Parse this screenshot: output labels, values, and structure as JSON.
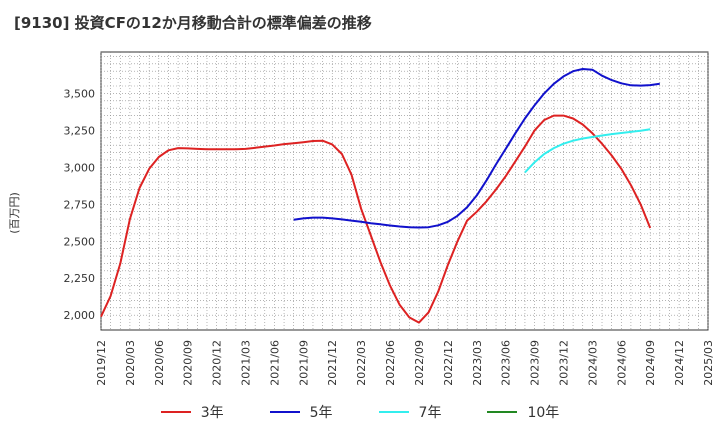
{
  "title": "[9130]  投資CFの12か月移動合計の標準偏差の推移",
  "chart_data": {
    "type": "line",
    "ylabel": "(百万円)",
    "ylim": [
      1900,
      3780
    ],
    "yticks": [
      2000,
      2250,
      2500,
      2750,
      3000,
      3250,
      3500
    ],
    "ytick_labels": [
      "2,000",
      "2,250",
      "2,500",
      "2,750",
      "3,000",
      "3,250",
      "3,500"
    ],
    "xticks": [
      "2019/12",
      "2020/03",
      "2020/06",
      "2020/09",
      "2020/12",
      "2021/03",
      "2021/06",
      "2021/09",
      "2021/12",
      "2022/03",
      "2022/06",
      "2022/09",
      "2022/12",
      "2023/03",
      "2023/06",
      "2023/09",
      "2023/12",
      "2024/03",
      "2024/06",
      "2024/09",
      "2024/12",
      "2025/03"
    ],
    "grid": true,
    "legend_position": "bottom",
    "series": [
      {
        "name": "3年",
        "color": "#dd2222",
        "start": "2019/12",
        "values": [
          1990,
          2130,
          2350,
          2650,
          2860,
          2990,
          3070,
          3115,
          3130,
          3128,
          3125,
          3123,
          3122,
          3122,
          3123,
          3125,
          3132,
          3140,
          3148,
          3157,
          3163,
          3170,
          3178,
          3180,
          3155,
          3090,
          2950,
          2720,
          2540,
          2360,
          2200,
          2070,
          1985,
          1950,
          2020,
          2160,
          2340,
          2500,
          2640,
          2700,
          2770,
          2850,
          2940,
          3040,
          3140,
          3250,
          3320,
          3350,
          3350,
          3330,
          3290,
          3230,
          3160,
          3080,
          2990,
          2880,
          2750,
          2590
        ]
      },
      {
        "name": "5年",
        "color": "#1111cc",
        "start": "2021/08",
        "values": [
          2645,
          2655,
          2660,
          2660,
          2655,
          2648,
          2640,
          2632,
          2622,
          2615,
          2607,
          2600,
          2595,
          2593,
          2595,
          2608,
          2632,
          2672,
          2730,
          2810,
          2910,
          3020,
          3125,
          3230,
          3330,
          3420,
          3500,
          3565,
          3615,
          3650,
          3665,
          3660,
          3620,
          3590,
          3568,
          3555,
          3553,
          3556,
          3565
        ]
      },
      {
        "name": "7年",
        "color": "#33eeee",
        "start": "2023/08",
        "values": [
          2965,
          3035,
          3090,
          3130,
          3160,
          3180,
          3195,
          3205,
          3215,
          3225,
          3232,
          3240,
          3248,
          3258
        ]
      },
      {
        "name": "10年",
        "color": "#228822",
        "start": "2019/12",
        "values": []
      }
    ]
  }
}
